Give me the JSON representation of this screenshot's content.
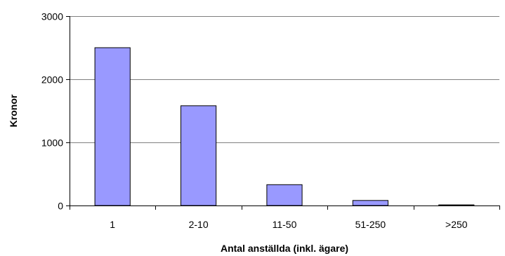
{
  "chart_data": {
    "type": "bar",
    "title": "",
    "xlabel": "Antal anställda (inkl. ägare)",
    "ylabel": "Kronor",
    "categories": [
      "1",
      "2-10",
      "11-50",
      "51-250",
      ">250"
    ],
    "values": [
      2500,
      1580,
      330,
      80,
      10
    ],
    "ylim": [
      0,
      3000
    ],
    "yticks": [
      0,
      1000,
      2000,
      3000
    ],
    "grid": true,
    "legend": "none",
    "bar_color": "#9999ff",
    "bar_stroke": "#000000",
    "grid_color": "#808080"
  }
}
